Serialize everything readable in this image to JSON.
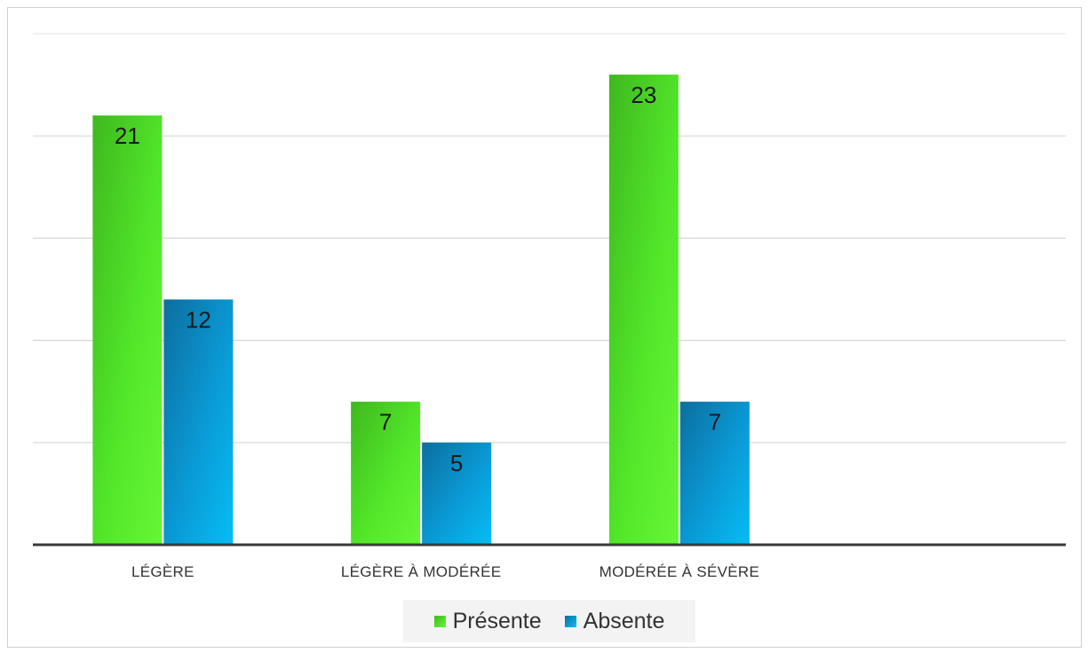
{
  "chart_data": {
    "type": "bar",
    "categories": [
      "LÉGÈRE",
      "LÉGÈRE À MODÉRÉE",
      "MODÉRÉE À SÉVÈRE"
    ],
    "series": [
      {
        "name": "Présente",
        "values": [
          21,
          7,
          23
        ],
        "color": "#4fe02a"
      },
      {
        "name": "Absente",
        "values": [
          12,
          5,
          7
        ],
        "color": "#0aa4e0"
      }
    ],
    "ylim": [
      0,
      25
    ],
    "grid": true,
    "legend_position": "bottom"
  },
  "legend": {
    "items": [
      {
        "label": "Présente",
        "color": "#4fe02a"
      },
      {
        "label": "Absente",
        "color": "#0aa4e0"
      }
    ]
  }
}
